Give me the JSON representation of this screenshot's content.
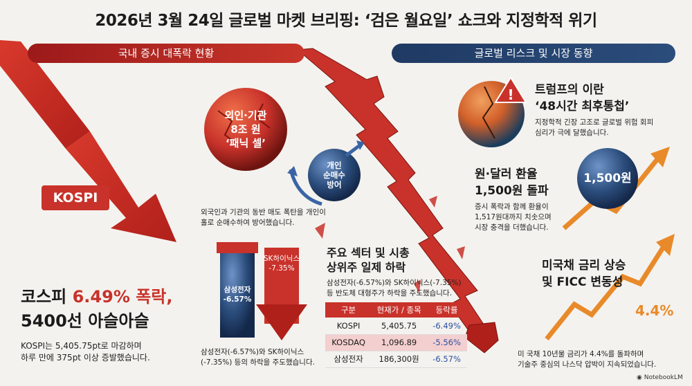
{
  "title": "2026년 3월 24일 글로벌 마켓 브리핑: ‘검은 월요일’ 쇼크와 지정학적 위기",
  "banners": {
    "domestic": "국내 증시 대폭락 현황",
    "global": "글로벌 리스크 및 시장 동향"
  },
  "panic_sphere": {
    "line1": "외인·기관",
    "line2": "8조 원",
    "line3": "‘패닉 셀’"
  },
  "retail_sphere": {
    "line1": "개인",
    "line2": "순매수",
    "line3": "방어"
  },
  "retail_caption": {
    "line1": "외국인과 기관의 동반 매도 폭탄을 개인이",
    "line2": "홀로 순매수하여 방어했습니다."
  },
  "kospi_badge": "KOSPI",
  "headline": {
    "line1_prefix": "코스피 ",
    "line1_highlight": "6.49% 폭락,",
    "line2": "5400선 아슬아슬"
  },
  "kospi_desc": {
    "line1": "KOSPI는 5,405.75pt로 마감하며",
    "line2": "하루 만에 375pt 이상 증발했습니다."
  },
  "bars": {
    "samsung_label1": "삼성전자",
    "samsung_label2": "-6.57%",
    "hynix_label1": "SK하이닉스",
    "hynix_label2": "-7.35%",
    "caption1": "삼성전자(-6.57%)와 SK하이닉스",
    "caption2": "(-7.35%) 등의 하락을 주도했습니다."
  },
  "sector": {
    "title1": "주요 섹터 및 시총",
    "title2": "상위주 일제 하락",
    "desc1": "삼성전자(-6.57%)와 SK하이닉스(-7.35%)",
    "desc2": "등 반도체 대형주가 하락을 주도했습니다."
  },
  "table": {
    "headers": [
      "구분",
      "현재가 / 종목",
      "등락률"
    ],
    "rows": [
      [
        "KOSPI",
        "5,405.75",
        "-6.49%"
      ],
      [
        "KOSDAQ",
        "1,096.89",
        "-5.56%"
      ],
      [
        "삼성전자",
        "186,300원",
        "-6.57%"
      ]
    ]
  },
  "trump": {
    "title1": "트럼프의 이란",
    "title2": "‘48시간 최후통첩’",
    "desc1": "지정학적 긴장 고조로 글로벌 위험 회피",
    "desc2": "심리가 극에 달했습니다."
  },
  "fx": {
    "title1": "원·달러 환율",
    "title2": "1,500원 돌파",
    "desc1": "증시 폭락과 함께 환율이",
    "desc2": "1,517원대까지 치솟으며",
    "desc3": "시장 충격을 더했습니다.",
    "sphere_label": "1,500원"
  },
  "bond": {
    "title1": "미국채 금리 상승",
    "title2": "및 FICC 변동성",
    "rate": "4.4%",
    "desc1": "미 국채 10년물 금리가 4.4%를 돌파하며",
    "desc2": "기술주 중심의 나스닥 압박이 지속되었습니다."
  },
  "watermark": "NotebookLM",
  "colors": {
    "crash_red": "#c8322a",
    "navy": "#1f3a63",
    "orange": "#e88a2a",
    "down_blue": "#2a4fa5"
  }
}
